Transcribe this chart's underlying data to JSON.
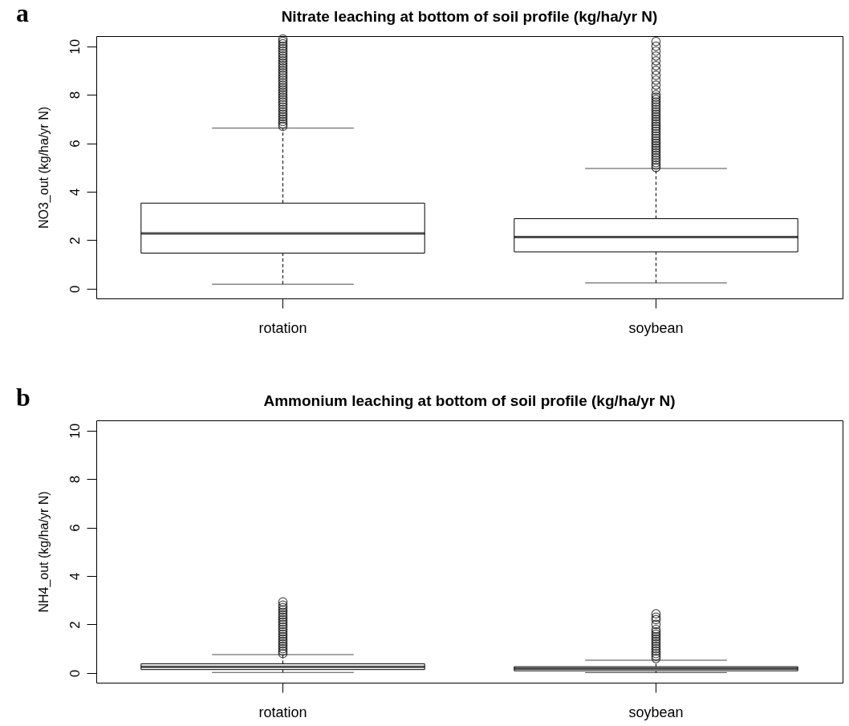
{
  "chart_data": [
    {
      "type": "box",
      "title": "Nitrate leaching at bottom of soil profile (kg/ha/yr N)",
      "ylabel": "NO3_out (kg/ha/yr N)",
      "annotations": [
        "a"
      ],
      "categories": [
        "rotation",
        "soybean"
      ],
      "ylim": [
        -0.4,
        10.42
      ],
      "yticks": [
        0,
        2,
        4,
        6,
        8,
        10
      ],
      "marker": "circle",
      "boxes": [
        {
          "low": 0.19,
          "q1": 1.47,
          "median": 2.28,
          "q3": 3.53,
          "high": 6.62,
          "outliers": [
            6.7,
            6.8,
            6.9,
            7.0,
            7.1,
            7.2,
            7.3,
            7.4,
            7.5,
            7.6,
            7.7,
            7.8,
            7.9,
            8.0,
            8.1,
            8.2,
            8.3,
            8.4,
            8.5,
            8.6,
            8.7,
            8.8,
            8.9,
            9.0,
            9.1,
            9.2,
            9.3,
            9.4,
            9.5,
            9.6,
            9.7,
            9.8,
            9.9,
            10.0,
            10.1,
            10.2,
            10.3
          ]
        },
        {
          "low": 0.24,
          "q1": 1.52,
          "median": 2.13,
          "q3": 2.89,
          "high": 4.96,
          "outliers": [
            5.0,
            5.1,
            5.2,
            5.3,
            5.4,
            5.5,
            5.6,
            5.7,
            5.8,
            5.9,
            6.0,
            6.1,
            6.2,
            6.3,
            6.4,
            6.5,
            6.6,
            6.7,
            6.8,
            6.9,
            7.0,
            7.1,
            7.2,
            7.3,
            7.4,
            7.5,
            7.6,
            7.7,
            7.8,
            7.9,
            8.0,
            8.2,
            8.4,
            8.6,
            8.8,
            9.0,
            9.2,
            9.4,
            9.6,
            9.8,
            10.0,
            10.2
          ]
        }
      ]
    },
    {
      "type": "box",
      "title": "Ammonium leaching at bottom of soil profile (kg/ha/yr N)",
      "ylabel": "NH4_out (kg/ha/yr N)",
      "annotations": [
        "b"
      ],
      "categories": [
        "rotation",
        "soybean"
      ],
      "ylim": [
        -0.4,
        10.42
      ],
      "yticks": [
        0,
        2,
        4,
        6,
        8,
        10
      ],
      "marker": "circle",
      "boxes": [
        {
          "low": 0.02,
          "q1": 0.14,
          "median": 0.25,
          "q3": 0.38,
          "high": 0.76,
          "outliers": [
            0.8,
            0.9,
            1.0,
            1.1,
            1.2,
            1.3,
            1.4,
            1.5,
            1.6,
            1.7,
            1.8,
            1.9,
            2.0,
            2.1,
            2.2,
            2.3,
            2.4,
            2.5,
            2.6,
            2.7,
            2.8,
            2.93
          ]
        },
        {
          "low": 0.01,
          "q1": 0.09,
          "median": 0.18,
          "q3": 0.26,
          "high": 0.53,
          "outliers": [
            0.6,
            0.7,
            0.8,
            0.9,
            1.0,
            1.1,
            1.2,
            1.3,
            1.4,
            1.5,
            1.6,
            1.7,
            1.8,
            2.0,
            2.2,
            2.3,
            2.44
          ]
        }
      ]
    }
  ]
}
